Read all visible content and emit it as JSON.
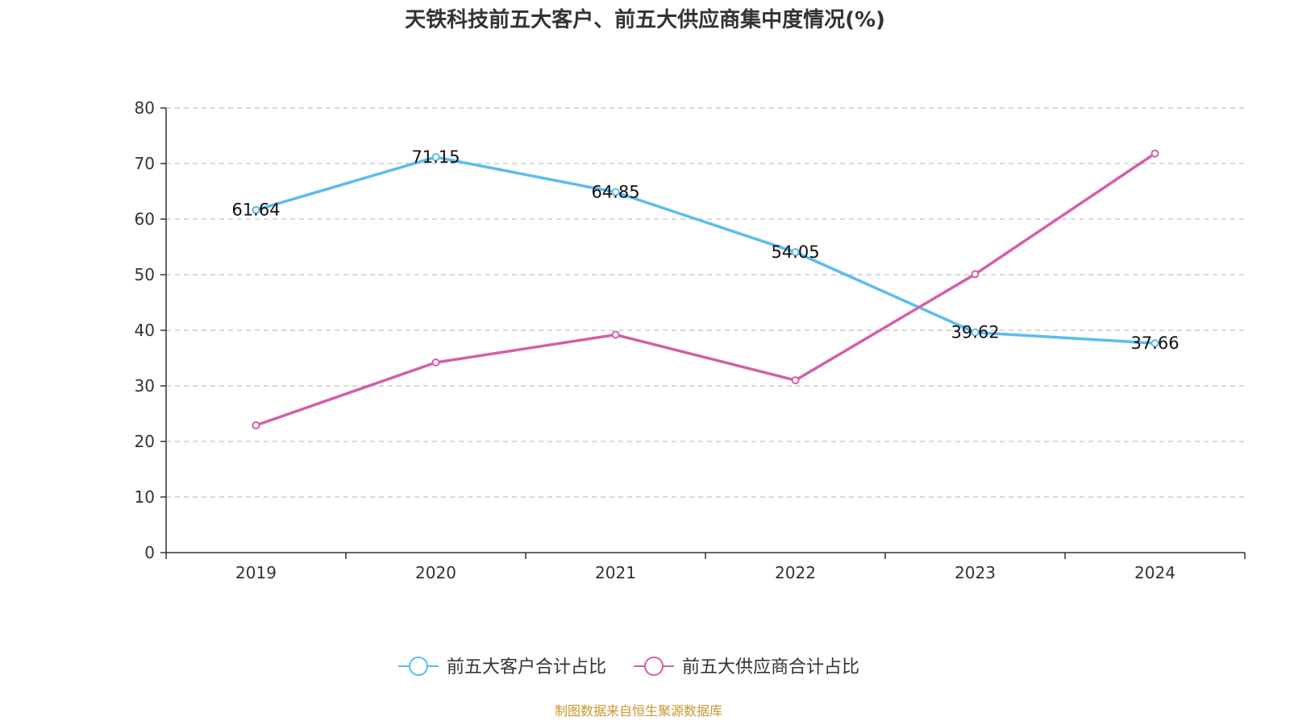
{
  "chart_data": {
    "type": "line",
    "title": "天铁科技前五大客户、前五大供应商集中度情况(%)",
    "categories": [
      "2019",
      "2020",
      "2021",
      "2022",
      "2023",
      "2024"
    ],
    "y_ticks": [
      "0",
      "10",
      "20",
      "30",
      "40",
      "50",
      "60",
      "70",
      "80"
    ],
    "ylim": [
      0,
      80
    ],
    "grid": true,
    "legend_position": "bottom-center",
    "series": [
      {
        "name": "前五大客户合计占比",
        "color": "#5bbcf0",
        "values": [
          61.64,
          71.15,
          64.85,
          54.05,
          39.62,
          37.66
        ],
        "labels": [
          "61.64",
          "71.15",
          "64.85",
          "54.05",
          "39.62",
          "37.66"
        ]
      },
      {
        "name": "前五大供应商合计占比",
        "color": "#d35fa8",
        "values": [
          22.9,
          34.2,
          39.2,
          31.0,
          50.1,
          71.8
        ]
      }
    ]
  },
  "source_note": "制图数据来自恒生聚源数据库",
  "colors": {
    "source_note": "#c8962e",
    "axis": "#333333",
    "grid": "#cccccc"
  }
}
